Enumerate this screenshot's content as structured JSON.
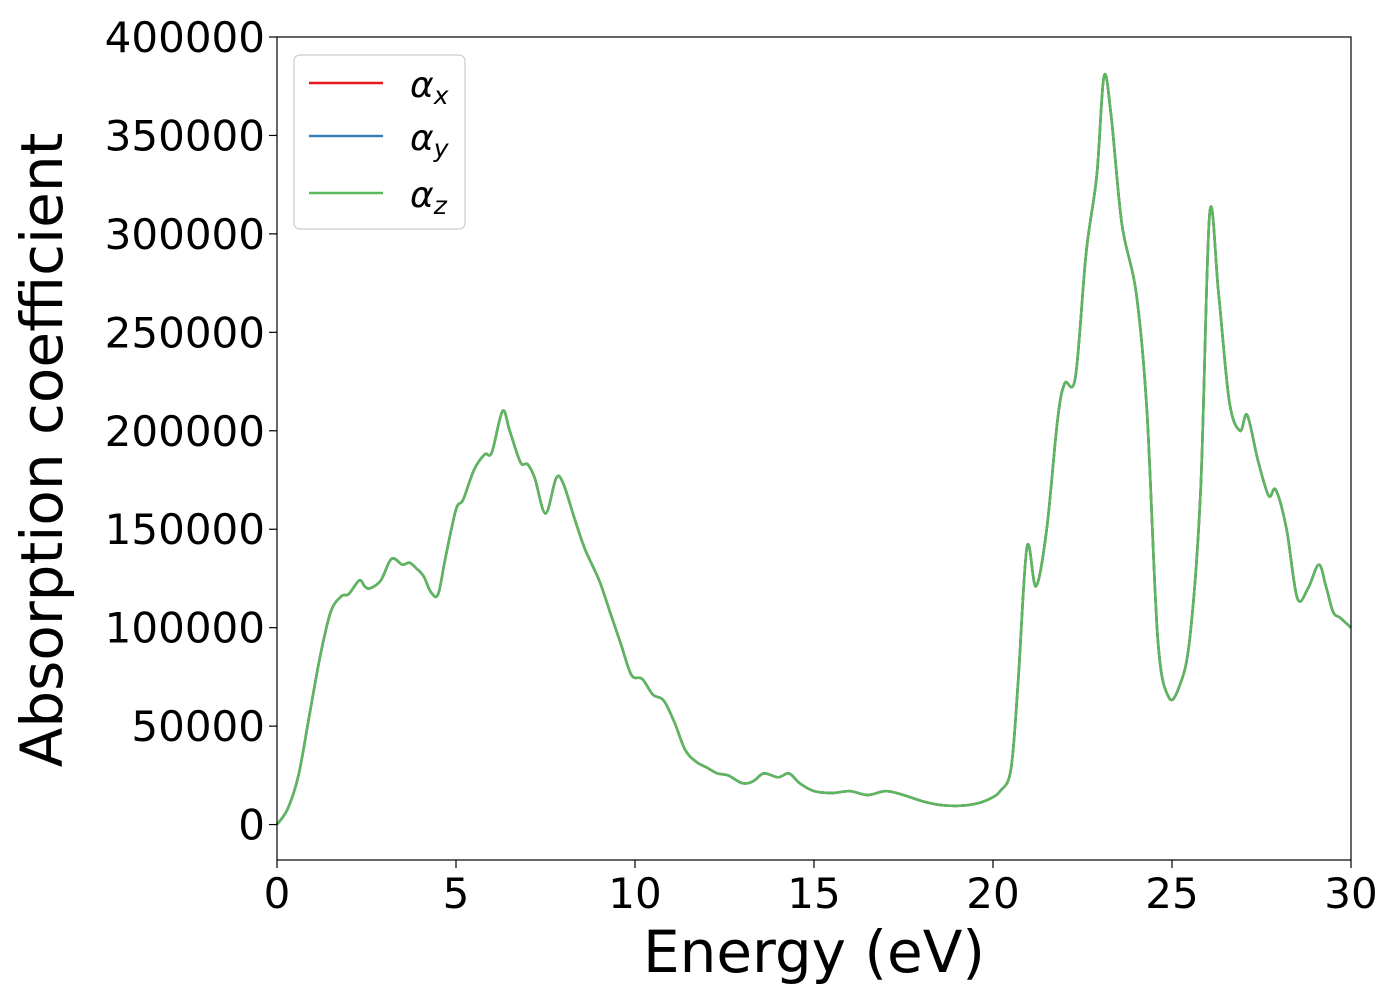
{
  "chart_data": {
    "type": "line",
    "title": "",
    "xlabel": "Energy (eV)",
    "ylabel": "Absorption coefficient",
    "xlim": [
      0,
      30
    ],
    "ylim": [
      -18000,
      400000
    ],
    "xticks": [
      0,
      5,
      10,
      15,
      20,
      25,
      30
    ],
    "yticks": [
      0,
      50000,
      100000,
      150000,
      200000,
      250000,
      300000,
      350000,
      400000
    ],
    "grid": false,
    "legend_position": "top-left",
    "x": [
      0,
      0.3,
      0.6,
      0.9,
      1.2,
      1.5,
      1.8,
      2.0,
      2.3,
      2.45,
      2.6,
      2.9,
      3.2,
      3.5,
      3.7,
      3.9,
      4.1,
      4.3,
      4.5,
      4.7,
      5.0,
      5.2,
      5.5,
      5.8,
      6.0,
      6.3,
      6.5,
      6.8,
      7.0,
      7.2,
      7.5,
      7.8,
      8.0,
      8.3,
      8.6,
      9.0,
      9.3,
      9.6,
      9.9,
      10.2,
      10.5,
      10.8,
      11.1,
      11.4,
      11.7,
      12.0,
      12.3,
      12.6,
      13.0,
      13.3,
      13.6,
      14.0,
      14.3,
      14.6,
      15.0,
      15.5,
      16.0,
      16.5,
      17.0,
      17.5,
      18.0,
      18.5,
      19.0,
      19.5,
      19.9,
      20.2,
      20.5,
      20.7,
      20.95,
      21.2,
      21.5,
      21.8,
      22.0,
      22.3,
      22.6,
      22.9,
      23.1,
      23.3,
      23.6,
      24.0,
      24.3,
      24.6,
      24.9,
      25.2,
      25.5,
      25.8,
      26.05,
      26.3,
      26.6,
      26.9,
      27.1,
      27.4,
      27.7,
      27.9,
      28.2,
      28.5,
      28.8,
      29.1,
      29.3,
      29.5,
      29.7,
      30.0
    ],
    "series": [
      {
        "name": "α_x",
        "color": "#e41a1c",
        "values": [
          0,
          8000,
          25000,
          55000,
          85000,
          108000,
          116000,
          117000,
          124000,
          121000,
          120000,
          124000,
          135000,
          132000,
          133000,
          130000,
          126000,
          118000,
          117000,
          135000,
          160000,
          165000,
          180000,
          188000,
          189000,
          210000,
          200000,
          184000,
          183000,
          176000,
          158000,
          176000,
          173000,
          156000,
          140000,
          124000,
          108000,
          92000,
          76000,
          74000,
          66000,
          63000,
          52000,
          38000,
          32000,
          29000,
          26000,
          25000,
          21000,
          22000,
          26000,
          24000,
          26000,
          21000,
          17000,
          16000,
          17000,
          15000,
          17000,
          15000,
          12000,
          10000,
          9500,
          10500,
          13000,
          17000,
          28000,
          72000,
          141000,
          121000,
          150000,
          205000,
          224000,
          227000,
          290000,
          330000,
          380000,
          360000,
          305000,
          270000,
          210000,
          95000,
          65000,
          70000,
          95000,
          170000,
          310000,
          270000,
          215000,
          200000,
          208000,
          185000,
          167000,
          170000,
          150000,
          115000,
          120000,
          132000,
          121000,
          108000,
          105000,
          100000
        ]
      },
      {
        "name": "α_y",
        "color": "#377eb8",
        "values": [
          0,
          8000,
          25000,
          55000,
          85000,
          108000,
          116000,
          117000,
          124000,
          121000,
          120000,
          124000,
          135000,
          132000,
          133000,
          130000,
          126000,
          118000,
          117000,
          135000,
          160000,
          165000,
          180000,
          188000,
          189000,
          210000,
          200000,
          184000,
          183000,
          176000,
          158000,
          176000,
          173000,
          156000,
          140000,
          124000,
          108000,
          92000,
          76000,
          74000,
          66000,
          63000,
          52000,
          38000,
          32000,
          29000,
          26000,
          25000,
          21000,
          22000,
          26000,
          24000,
          26000,
          21000,
          17000,
          16000,
          17000,
          15000,
          17000,
          15000,
          12000,
          10000,
          9500,
          10500,
          13000,
          17000,
          28000,
          72000,
          141000,
          121000,
          150000,
          205000,
          224000,
          227000,
          290000,
          330000,
          380000,
          360000,
          305000,
          270000,
          210000,
          95000,
          65000,
          70000,
          95000,
          170000,
          310000,
          270000,
          215000,
          200000,
          208000,
          185000,
          167000,
          170000,
          150000,
          115000,
          120000,
          132000,
          121000,
          108000,
          105000,
          100000
        ]
      },
      {
        "name": "α_z",
        "color": "#5cb85c",
        "values": [
          0,
          8000,
          25000,
          55000,
          85000,
          108000,
          116000,
          117000,
          124000,
          121000,
          120000,
          124000,
          135000,
          132000,
          133000,
          130000,
          126000,
          118000,
          117000,
          135000,
          160000,
          165000,
          180000,
          188000,
          189000,
          210000,
          200000,
          184000,
          183000,
          176000,
          158000,
          176000,
          173000,
          156000,
          140000,
          124000,
          108000,
          92000,
          76000,
          74000,
          66000,
          63000,
          52000,
          38000,
          32000,
          29000,
          26000,
          25000,
          21000,
          22000,
          26000,
          24000,
          26000,
          21000,
          17000,
          16000,
          17000,
          15000,
          17000,
          15000,
          12000,
          10000,
          9500,
          10500,
          13000,
          17000,
          28000,
          72000,
          141000,
          121000,
          150000,
          205000,
          224000,
          227000,
          290000,
          330000,
          380000,
          360000,
          305000,
          270000,
          210000,
          95000,
          65000,
          70000,
          95000,
          170000,
          310000,
          270000,
          215000,
          200000,
          208000,
          185000,
          167000,
          170000,
          150000,
          115000,
          120000,
          132000,
          121000,
          108000,
          105000,
          100000
        ]
      }
    ],
    "legend": [
      {
        "symbol": "α",
        "sub": "x",
        "color": "#e41a1c"
      },
      {
        "symbol": "α",
        "sub": "y",
        "color": "#377eb8"
      },
      {
        "symbol": "α",
        "sub": "z",
        "color": "#5cb85c"
      }
    ]
  }
}
